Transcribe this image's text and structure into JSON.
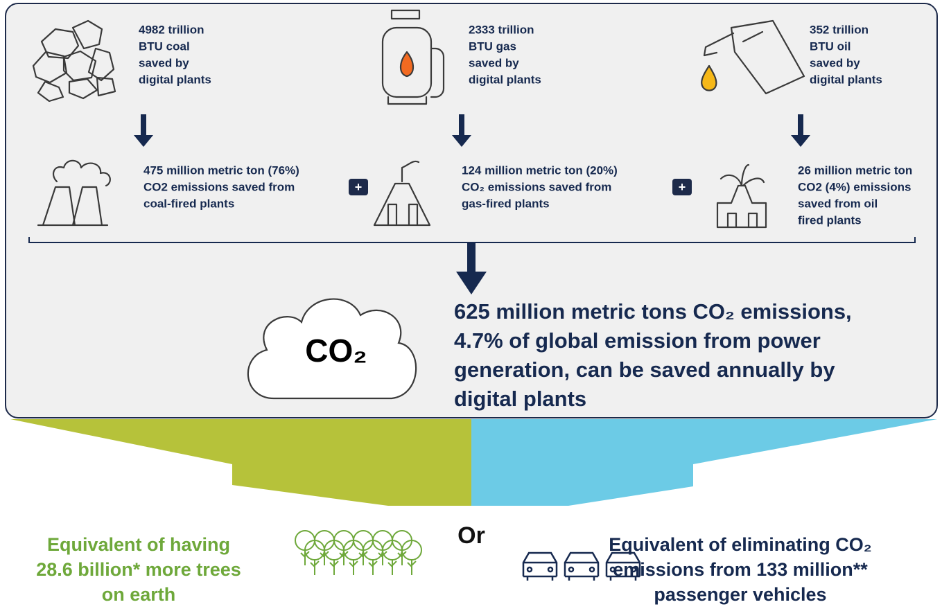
{
  "fuels": [
    {
      "lines": [
        "4982 trillion",
        "BTU coal",
        "saved by",
        "digital plants"
      ]
    },
    {
      "lines": [
        "2333 trillion",
        "BTU gas",
        "saved by",
        "digital plants"
      ]
    },
    {
      "lines": [
        "352 trillion",
        "BTU oil",
        "saved by",
        "digital plants"
      ]
    }
  ],
  "emissions": [
    {
      "lines": [
        "475 million metric ton (76%)",
        "CO2 emissions saved from",
        "coal-fired plants"
      ]
    },
    {
      "lines": [
        "124 million metric ton (20%)",
        "CO₂ emissions saved from",
        "gas-fired plants"
      ]
    },
    {
      "lines": [
        "26 million metric ton",
        "CO2 (4%) emissions",
        "saved from oil",
        "fired plants"
      ]
    }
  ],
  "plus": [
    "+",
    "+"
  ],
  "cloud_label": "CO₂",
  "total": {
    "lines": [
      "625 million metric tons CO₂ emissions,",
      "4.7% of global emission from power",
      "generation, can be saved annually by",
      "digital plants"
    ]
  },
  "trees": {
    "lines": [
      "Equivalent of having",
      "28.6 billion* more trees",
      "on earth"
    ]
  },
  "or": "Or",
  "vehicles": {
    "lines": [
      "Equivalent of eliminating CO₂",
      "emissions from 133 million**",
      "passenger vehicles"
    ]
  }
}
